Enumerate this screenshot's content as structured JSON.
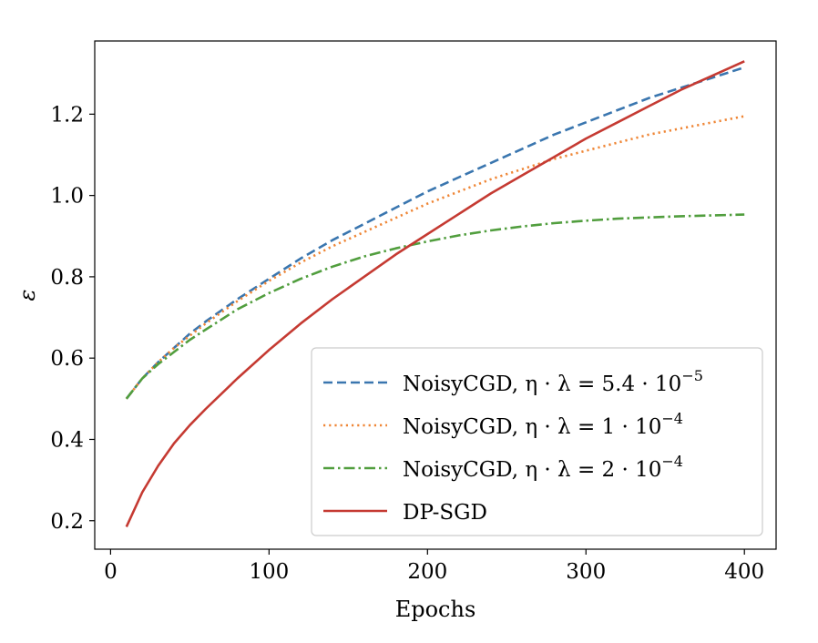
{
  "chart_data": {
    "type": "line",
    "xlabel": "Epochs",
    "ylabel": "ε",
    "xlim": [
      -10,
      420
    ],
    "ylim": [
      0.13,
      1.38
    ],
    "xticks": [
      0,
      100,
      200,
      300,
      400
    ],
    "yticks": [
      0.2,
      0.4,
      0.6,
      0.8,
      1.0,
      1.2
    ],
    "xtick_labels": [
      "0",
      "100",
      "200",
      "300",
      "400"
    ],
    "ytick_labels": [
      "0.2",
      "0.4",
      "0.6",
      "0.8",
      "1.0",
      "1.2"
    ],
    "grid": false,
    "legend_position": "lower-right",
    "x": [
      10,
      20,
      30,
      40,
      50,
      60,
      80,
      100,
      120,
      140,
      160,
      180,
      200,
      220,
      240,
      260,
      280,
      300,
      320,
      340,
      360,
      380,
      400
    ],
    "series": [
      {
        "name": "NoisyCGD, η · λ = 5.4 · 10",
        "name_sup": "−5",
        "color": "#3a76af",
        "dash": "dashed",
        "values": [
          0.5,
          0.55,
          0.59,
          0.625,
          0.66,
          0.69,
          0.745,
          0.795,
          0.845,
          0.89,
          0.93,
          0.97,
          1.01,
          1.045,
          1.08,
          1.115,
          1.15,
          1.18,
          1.21,
          1.24,
          1.265,
          1.29,
          1.315
        ]
      },
      {
        "name": "NoisyCGD, η · λ = 1 · 10",
        "name_sup": "−4",
        "color": "#ef8636",
        "dash": "dotted",
        "values": [
          0.5,
          0.55,
          0.59,
          0.625,
          0.655,
          0.685,
          0.74,
          0.79,
          0.835,
          0.875,
          0.91,
          0.945,
          0.98,
          1.01,
          1.04,
          1.065,
          1.09,
          1.11,
          1.13,
          1.15,
          1.165,
          1.18,
          1.195
        ]
      },
      {
        "name": "NoisyCGD, η · λ = 2 · 10",
        "name_sup": "−4",
        "color": "#519e3e",
        "dash": "dashdot",
        "values": [
          0.5,
          0.55,
          0.585,
          0.615,
          0.645,
          0.67,
          0.72,
          0.76,
          0.795,
          0.825,
          0.85,
          0.87,
          0.887,
          0.902,
          0.914,
          0.924,
          0.932,
          0.938,
          0.943,
          0.946,
          0.949,
          0.951,
          0.953
        ]
      },
      {
        "name": "DP-SGD",
        "name_sup": "",
        "color": "#c53a32",
        "dash": "solid",
        "values": [
          0.185,
          0.27,
          0.335,
          0.39,
          0.435,
          0.475,
          0.55,
          0.62,
          0.685,
          0.745,
          0.8,
          0.855,
          0.905,
          0.955,
          1.005,
          1.05,
          1.095,
          1.14,
          1.18,
          1.22,
          1.26,
          1.295,
          1.33
        ]
      }
    ]
  }
}
